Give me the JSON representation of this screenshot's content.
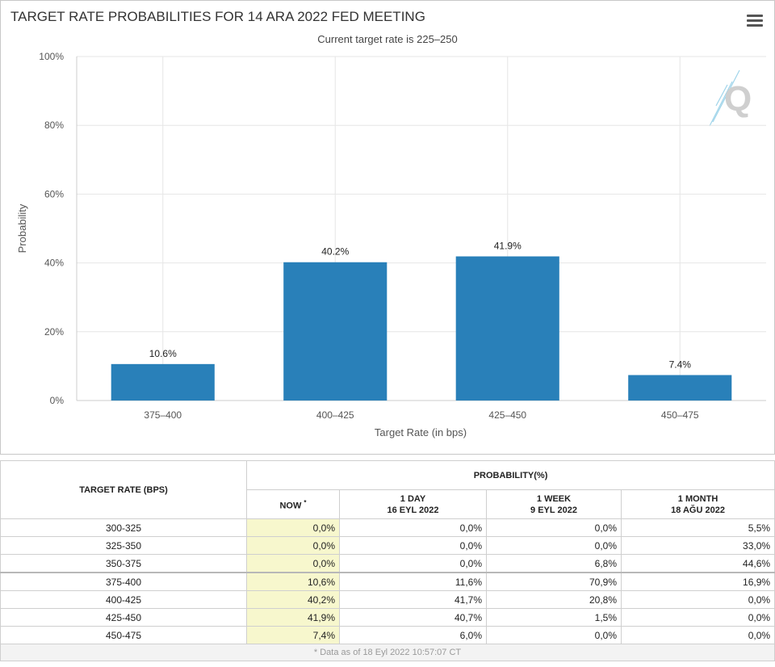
{
  "chart_data": {
    "type": "bar",
    "title": "TARGET RATE PROBABILITIES FOR 14 ARA 2022 FED MEETING",
    "subtitle": "Current target rate is 225–250",
    "xlabel": "Target Rate (in bps)",
    "ylabel": "Probability",
    "categories": [
      "375–400",
      "400–425",
      "425–450",
      "450–475"
    ],
    "values": [
      10.6,
      40.2,
      41.9,
      7.4
    ],
    "data_labels": [
      "10.6%",
      "40.2%",
      "41.9%",
      "7.4%"
    ],
    "ylim": [
      0,
      100
    ],
    "yticks": [
      0,
      20,
      40,
      60,
      80,
      100
    ],
    "ytick_labels": [
      "0%",
      "20%",
      "40%",
      "60%",
      "80%",
      "100%"
    ],
    "grid": true,
    "legend": "none",
    "bar_color": "#2980b9"
  },
  "colors": {
    "bar": "#2980b9",
    "now_column_bg": "#f7f7cd",
    "grid": "#e6e6e6"
  },
  "icons": {
    "menu": "hamburger-icon",
    "watermark": "quikstrike-q-logo"
  },
  "table": {
    "col_rate_header": "TARGET RATE (BPS)",
    "probability_header": "PROBABILITY(%)",
    "now_label": "NOW",
    "now_mark": "*",
    "day_label": "1 DAY",
    "day_date": "16 EYL 2022",
    "week_label": "1 WEEK",
    "week_date": "9 EYL 2022",
    "month_label": "1 MONTH",
    "month_date": "18 AĞU 2022",
    "rows": [
      {
        "rate": "300-325",
        "now": "0,0%",
        "day": "0,0%",
        "week": "0,0%",
        "month": "5,5%"
      },
      {
        "rate": "325-350",
        "now": "0,0%",
        "day": "0,0%",
        "week": "0,0%",
        "month": "33,0%"
      },
      {
        "rate": "350-375",
        "now": "0,0%",
        "day": "0,0%",
        "week": "6,8%",
        "month": "44,6%"
      },
      {
        "rate": "375-400",
        "now": "10,6%",
        "day": "11,6%",
        "week": "70,9%",
        "month": "16,9%"
      },
      {
        "rate": "400-425",
        "now": "40,2%",
        "day": "41,7%",
        "week": "20,8%",
        "month": "0,0%"
      },
      {
        "rate": "425-450",
        "now": "41,9%",
        "day": "40,7%",
        "week": "1,5%",
        "month": "0,0%"
      },
      {
        "rate": "450-475",
        "now": "7,4%",
        "day": "6,0%",
        "week": "0,0%",
        "month": "0,0%"
      }
    ],
    "footer": "* Data as of 18 Eyl 2022 10:57:07 CT"
  }
}
